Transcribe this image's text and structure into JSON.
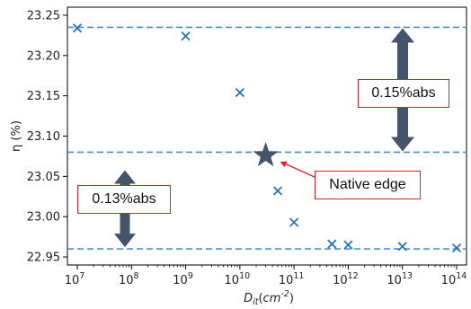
{
  "chart_data": {
    "type": "scatter",
    "xlabel": "D_it(cm^-2)",
    "ylabel": "η (%)",
    "x_scale": "log",
    "xlim": [
      10000000.0,
      100000000000000.0
    ],
    "ylim": [
      22.94,
      23.26
    ],
    "x_tick_exponents": [
      7,
      8,
      9,
      10,
      11,
      12,
      13,
      14
    ],
    "x_tick_base": "10",
    "y_ticks": [
      "22.95",
      "23.00",
      "23.05",
      "23.10",
      "23.15",
      "23.20",
      "23.25"
    ],
    "grid": false,
    "marker": "x",
    "points": [
      {
        "x": 10000000.0,
        "y": 23.234
      },
      {
        "x": 1000000000.0,
        "y": 23.224
      },
      {
        "x": 10000000000.0,
        "y": 23.154
      },
      {
        "x": 50000000000.0,
        "y": 23.032
      },
      {
        "x": 100000000000.0,
        "y": 22.993
      },
      {
        "x": 500000000000.0,
        "y": 22.966
      },
      {
        "x": 1000000000000.0,
        "y": 22.965
      },
      {
        "x": 10000000000000.0,
        "y": 22.963
      },
      {
        "x": 100000000000000.0,
        "y": 22.961
      }
    ],
    "reference_lines": [
      23.235,
      23.08,
      22.96
    ],
    "star": {
      "x": 30000000000.0,
      "y": 23.076
    },
    "annotations": {
      "native_edge": "Native edge",
      "gap_top": "0.15%abs",
      "gap_bottom": "0.13%abs"
    },
    "colors": {
      "marker": "#2e75b6",
      "reference_line": "#4a90c8",
      "star": "#44546a",
      "arrow": "#44546a",
      "callout_border": "#e0202a"
    }
  }
}
